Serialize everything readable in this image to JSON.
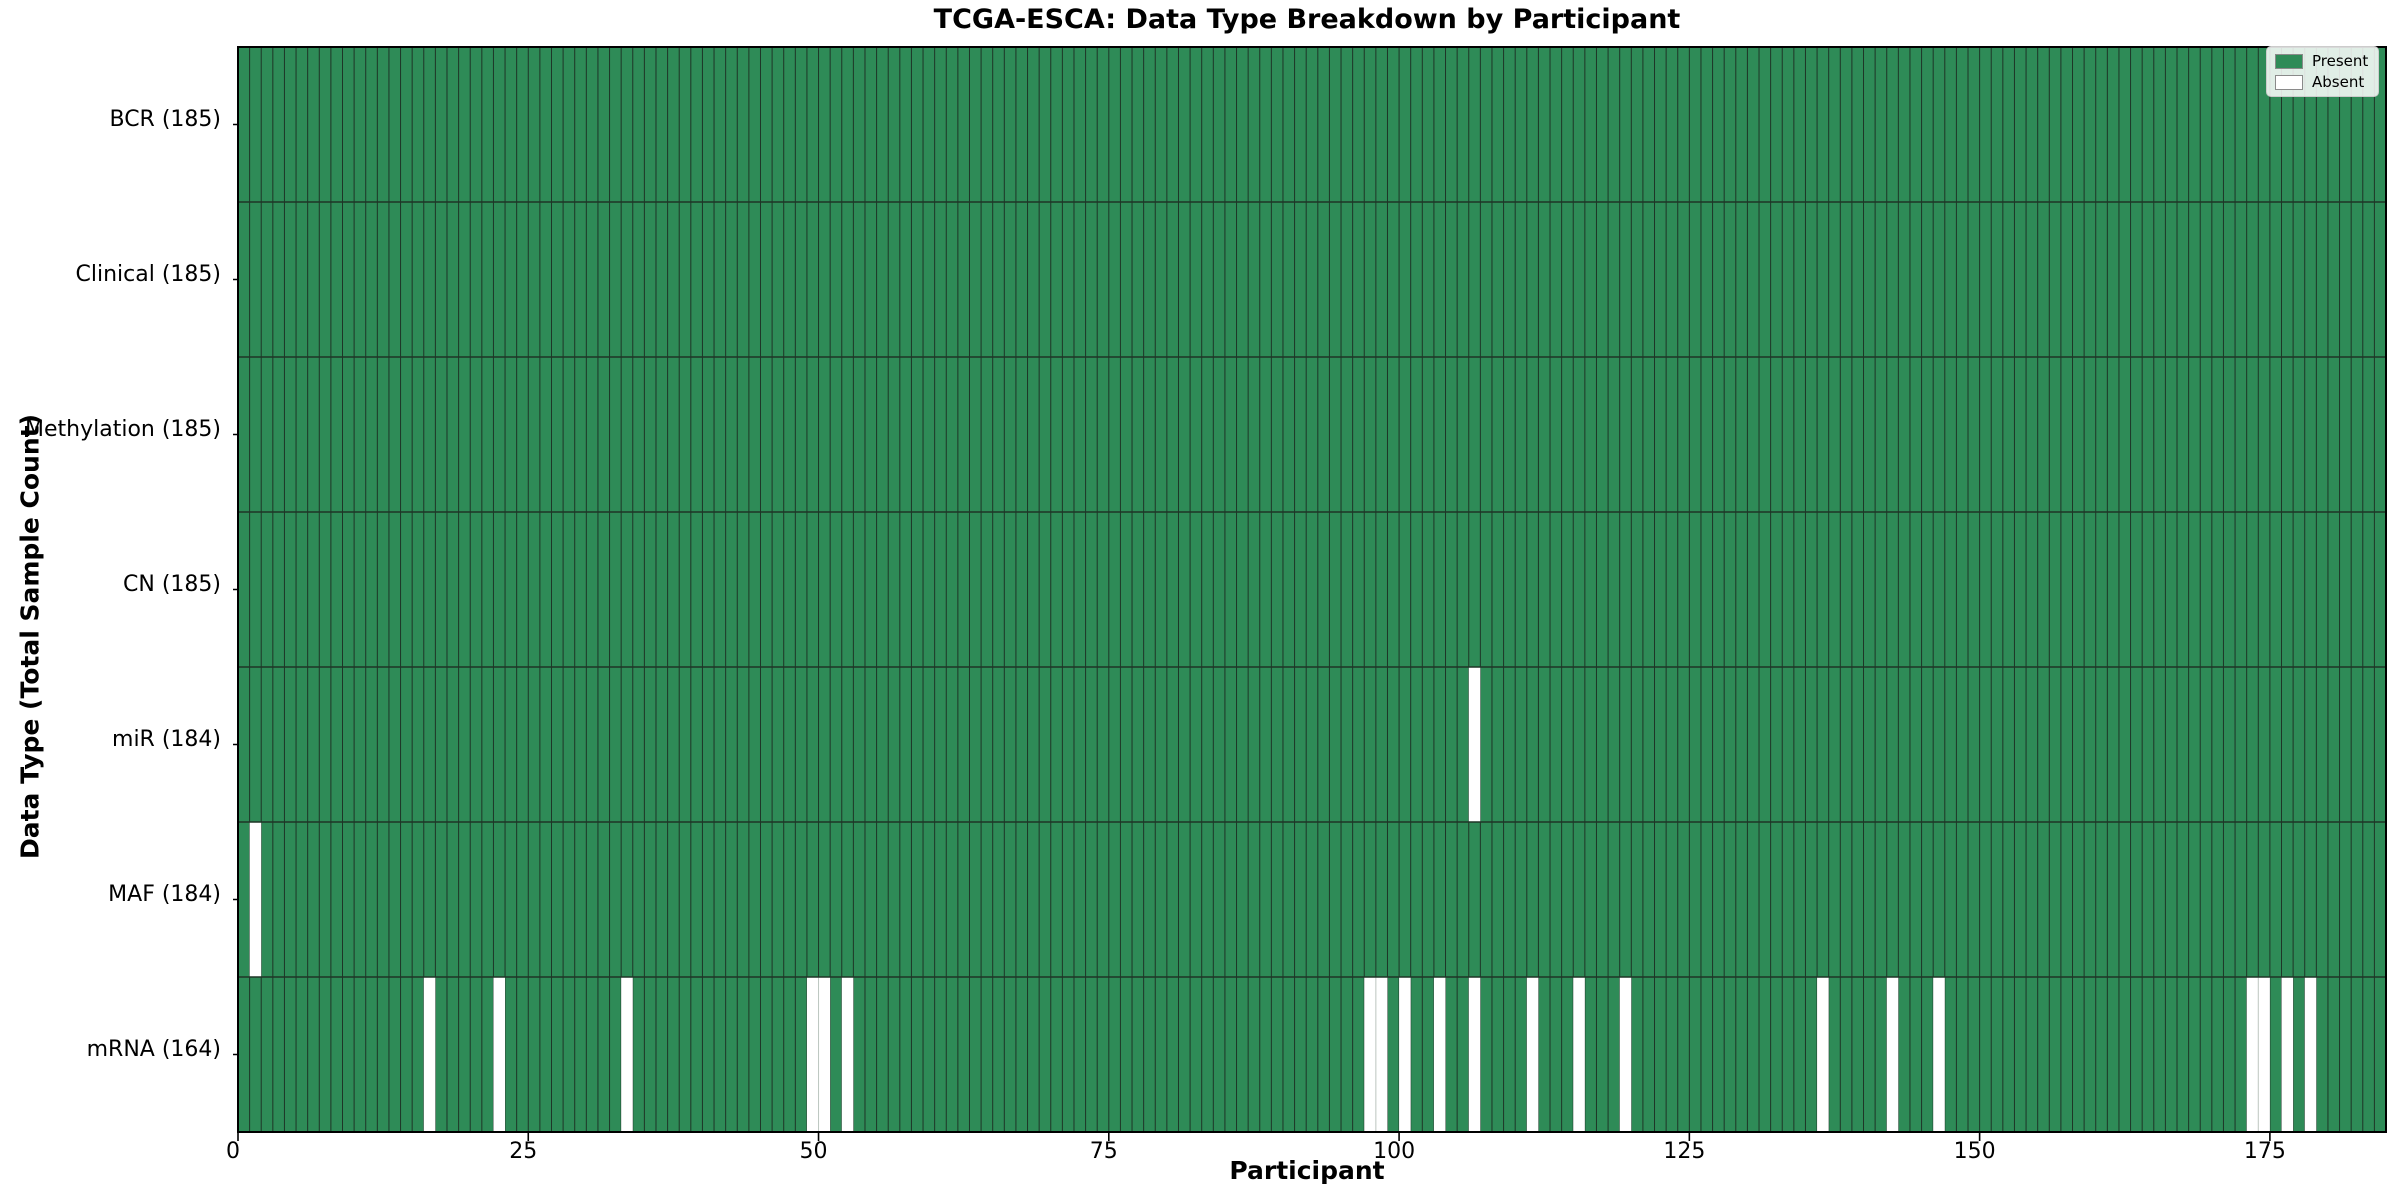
{
  "chart_data": {
    "type": "heatmap",
    "title": "TCGA-ESCA: Data Type Breakdown by Participant",
    "xlabel": "Participant",
    "ylabel": "Data Type (Total Sample Count)",
    "n_participants": 185,
    "x_ticks": [
      0,
      25,
      50,
      75,
      100,
      125,
      150,
      175
    ],
    "legend": [
      {
        "label": "Present",
        "color": "#2e8b57"
      },
      {
        "label": "Absent",
        "color": "#ffffff"
      }
    ],
    "colors": {
      "present": "#2e8b57",
      "absent": "#ffffff",
      "cell_edge": "#1e3527",
      "absent_edge": "#bcc6bf",
      "axis": "#000000"
    },
    "rows": [
      {
        "label": "BCR (185)",
        "name": "BCR",
        "total": 185,
        "absent_participants": []
      },
      {
        "label": "Clinical (185)",
        "name": "Clinical",
        "total": 185,
        "absent_participants": []
      },
      {
        "label": "Methylation (185)",
        "name": "Methylation",
        "total": 185,
        "absent_participants": []
      },
      {
        "label": "CN (185)",
        "name": "CN",
        "total": 185,
        "absent_participants": []
      },
      {
        "label": "miR (184)",
        "name": "miR",
        "total": 184,
        "absent_participants": [
          106
        ]
      },
      {
        "label": "MAF (184)",
        "name": "MAF",
        "total": 184,
        "absent_participants": [
          1
        ]
      },
      {
        "label": "mRNA (164)",
        "name": "mRNA",
        "total": 164,
        "absent_participants": [
          16,
          22,
          33,
          49,
          50,
          52,
          97,
          98,
          100,
          103,
          106,
          111,
          115,
          119,
          136,
          142,
          146,
          173,
          174,
          176,
          178
        ]
      }
    ]
  }
}
